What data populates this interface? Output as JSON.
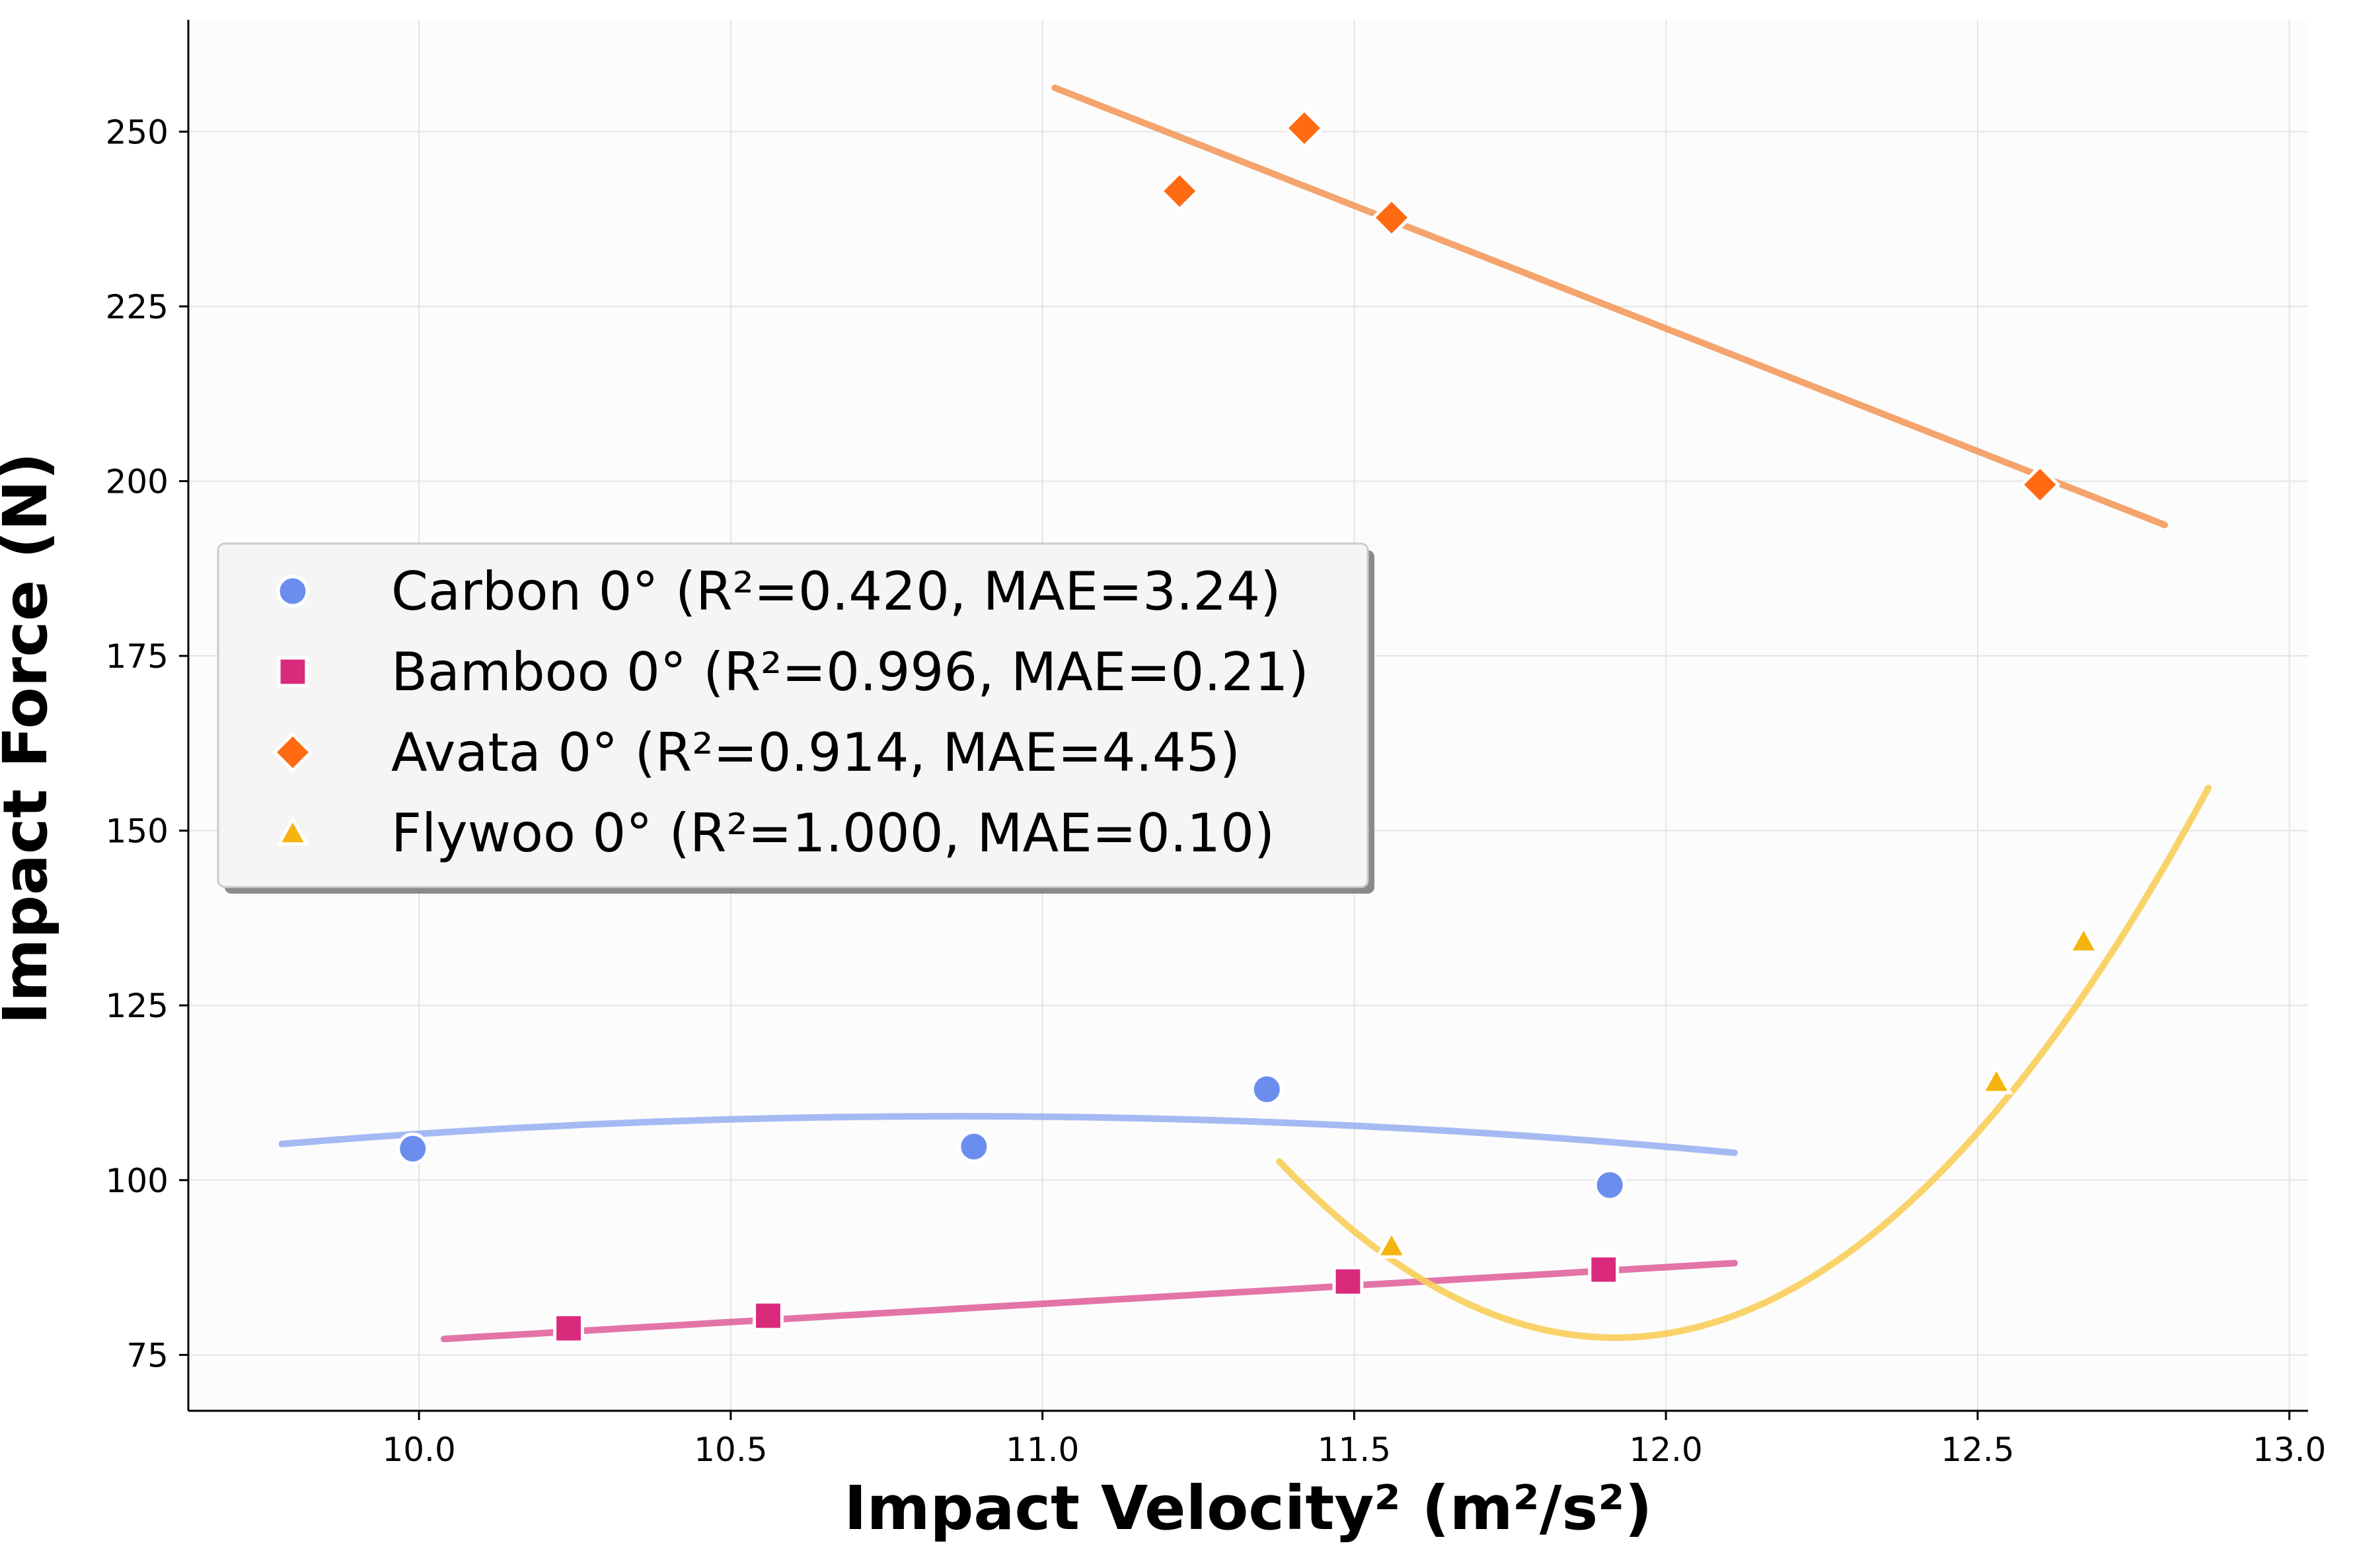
{
  "chart_data": {
    "type": "scatter",
    "title": "",
    "xlabel": "Impact Velocity² (m²/s²)",
    "ylabel": "Impact Force (N)",
    "xlim": [
      9.63,
      13.03
    ],
    "ylim": [
      67,
      266
    ],
    "xticks": [
      10.0,
      10.5,
      11.0,
      11.5,
      12.0,
      12.5,
      13.0
    ],
    "xtick_labels": [
      "10.0",
      "10.5",
      "11.0",
      "11.5",
      "12.0",
      "12.5",
      "13.0"
    ],
    "yticks": [
      75,
      100,
      125,
      150,
      175,
      200,
      225,
      250
    ],
    "ytick_labels": [
      "75",
      "100",
      "125",
      "150",
      "175",
      "200",
      "225",
      "250"
    ],
    "grid": true,
    "legend_position": "center-left",
    "series": [
      {
        "name": "Carbon 0° (R²=0.420, MAE=3.24)",
        "marker": "circle",
        "color": "#6B8EEE",
        "line_color": "#9BB3F2",
        "points": [
          [
            9.99,
            104.5
          ],
          [
            10.89,
            104.8
          ],
          [
            11.36,
            113.0
          ],
          [
            11.91,
            99.3
          ]
        ],
        "fit": {
          "degree": 2,
          "x_range": [
            9.78,
            12.11
          ],
          "coefficients": [
            -288.98,
            73.29,
            -3.373
          ]
        }
      },
      {
        "name": "Bamboo 0° (R²=0.996, MAE=0.21)",
        "marker": "square",
        "color": "#D92A7C",
        "line_color": "#E0659F",
        "points": [
          [
            10.24,
            78.8
          ],
          [
            10.56,
            80.6
          ],
          [
            11.49,
            85.5
          ],
          [
            11.9,
            87.2
          ]
        ],
        "fit": {
          "degree": 1,
          "x_range": [
            10.04,
            12.11
          ],
          "coefficients": [
            24.67,
            5.24
          ]
        }
      },
      {
        "name": "Avata 0° (R²=0.914, MAE=4.45)",
        "marker": "diamond",
        "color": "#FF6A13",
        "line_color": "#F39A5C",
        "points": [
          [
            11.22,
            241.5
          ],
          [
            11.42,
            250.5
          ],
          [
            11.56,
            237.7
          ],
          [
            12.6,
            199.5
          ]
        ],
        "fit": {
          "degree": 1,
          "x_range": [
            11.02,
            12.8
          ],
          "coefficients": [
            643.4,
            -35.13
          ]
        }
      },
      {
        "name": "Flywoo 0° (R²=1.000, MAE=0.10)",
        "marker": "triangle",
        "color": "#F5B40F",
        "line_color": "#F8CE5A",
        "points": [
          [
            11.56,
            90.6
          ],
          [
            12.53,
            114.1
          ],
          [
            12.67,
            134.2
          ]
        ],
        "fit": {
          "degree": 2,
          "x_range": [
            11.38,
            12.87
          ],
          "coefficients": [
            12416.2,
            -2070.5,
            86.86
          ]
        }
      }
    ]
  }
}
